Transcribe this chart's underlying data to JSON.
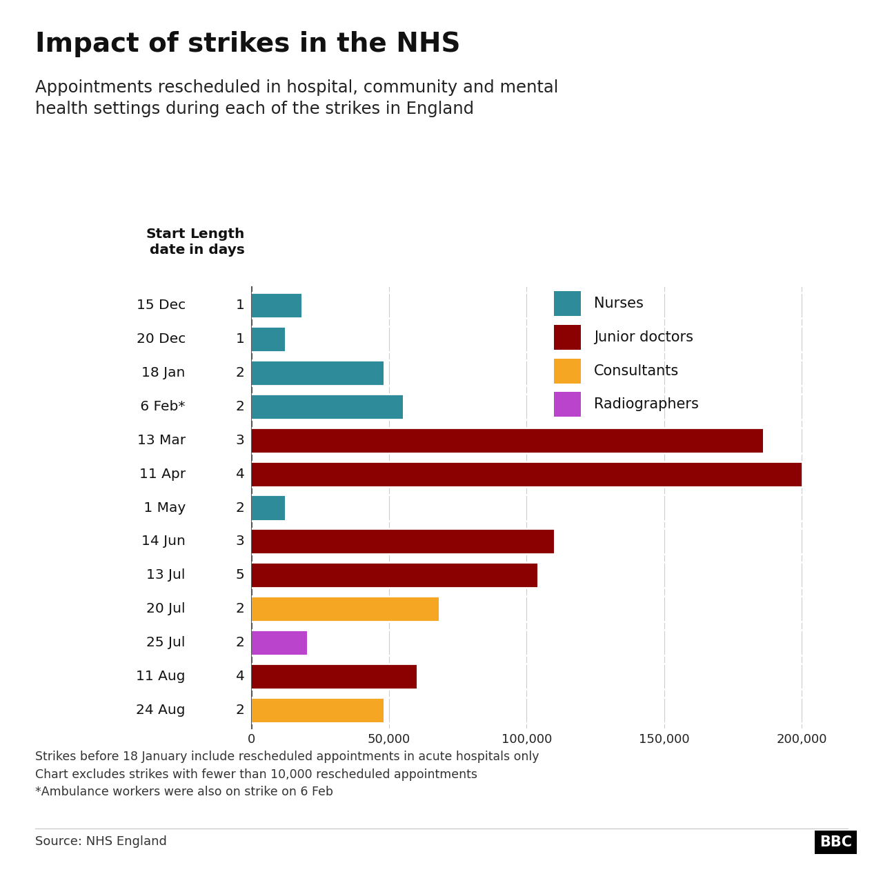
{
  "title": "Impact of strikes in the NHS",
  "subtitle": "Appointments rescheduled in hospital, community and mental\nhealth settings during each of the strikes in England",
  "footnotes": "Strikes before 18 January include rescheduled appointments in acute hospitals only\nChart excludes strikes with fewer than 10,000 rescheduled appointments\n*Ambulance workers were also on strike on 6 Feb",
  "source": "Source: NHS England",
  "bars": [
    {
      "label": "15 Dec",
      "days": "1",
      "value": 18000,
      "color": "#2e8b9a",
      "category": "Nurses"
    },
    {
      "label": "20 Dec",
      "days": "1",
      "value": 12000,
      "color": "#2e8b9a",
      "category": "Nurses"
    },
    {
      "label": "18 Jan",
      "days": "2",
      "value": 48000,
      "color": "#2e8b9a",
      "category": "Nurses"
    },
    {
      "label": " 6 Feb*",
      "days": "2",
      "value": 55000,
      "color": "#2e8b9a",
      "category": "Nurses"
    },
    {
      "label": "13 Mar",
      "days": "3",
      "value": 186000,
      "color": "#8b0000",
      "category": "Junior doctors"
    },
    {
      "label": "11 Apr",
      "days": "4",
      "value": 200000,
      "color": "#8b0000",
      "category": "Junior doctors"
    },
    {
      "label": " 1 May",
      "days": "2",
      "value": 12000,
      "color": "#2e8b9a",
      "category": "Nurses"
    },
    {
      "label": "14 Jun",
      "days": "3",
      "value": 110000,
      "color": "#8b0000",
      "category": "Junior doctors"
    },
    {
      "label": "13 Jul",
      "days": "5",
      "value": 104000,
      "color": "#8b0000",
      "category": "Junior doctors"
    },
    {
      "label": "20 Jul",
      "days": "2",
      "value": 68000,
      "color": "#f5a623",
      "category": "Consultants"
    },
    {
      "label": "25 Jul",
      "days": "2",
      "value": 20000,
      "color": "#bb44cc",
      "category": "Radiographers"
    },
    {
      "label": "11 Aug",
      "days": "4",
      "value": 60000,
      "color": "#8b0000",
      "category": "Junior doctors"
    },
    {
      "label": "24 Aug",
      "days": "2",
      "value": 48000,
      "color": "#f5a623",
      "category": "Consultants"
    }
  ],
  "xlim": [
    0,
    220000
  ],
  "xticks": [
    0,
    50000,
    100000,
    150000,
    200000
  ],
  "xtick_labels": [
    "0",
    "50,000",
    "100,000",
    "150,000",
    "200,000"
  ],
  "legend_items": [
    {
      "label": "Nurses",
      "color": "#2e8b9a"
    },
    {
      "label": "Junior doctors",
      "color": "#8b0000"
    },
    {
      "label": "Consultants",
      "color": "#f5a623"
    },
    {
      "label": "Radiographers",
      "color": "#bb44cc"
    }
  ],
  "background_color": "#ffffff"
}
